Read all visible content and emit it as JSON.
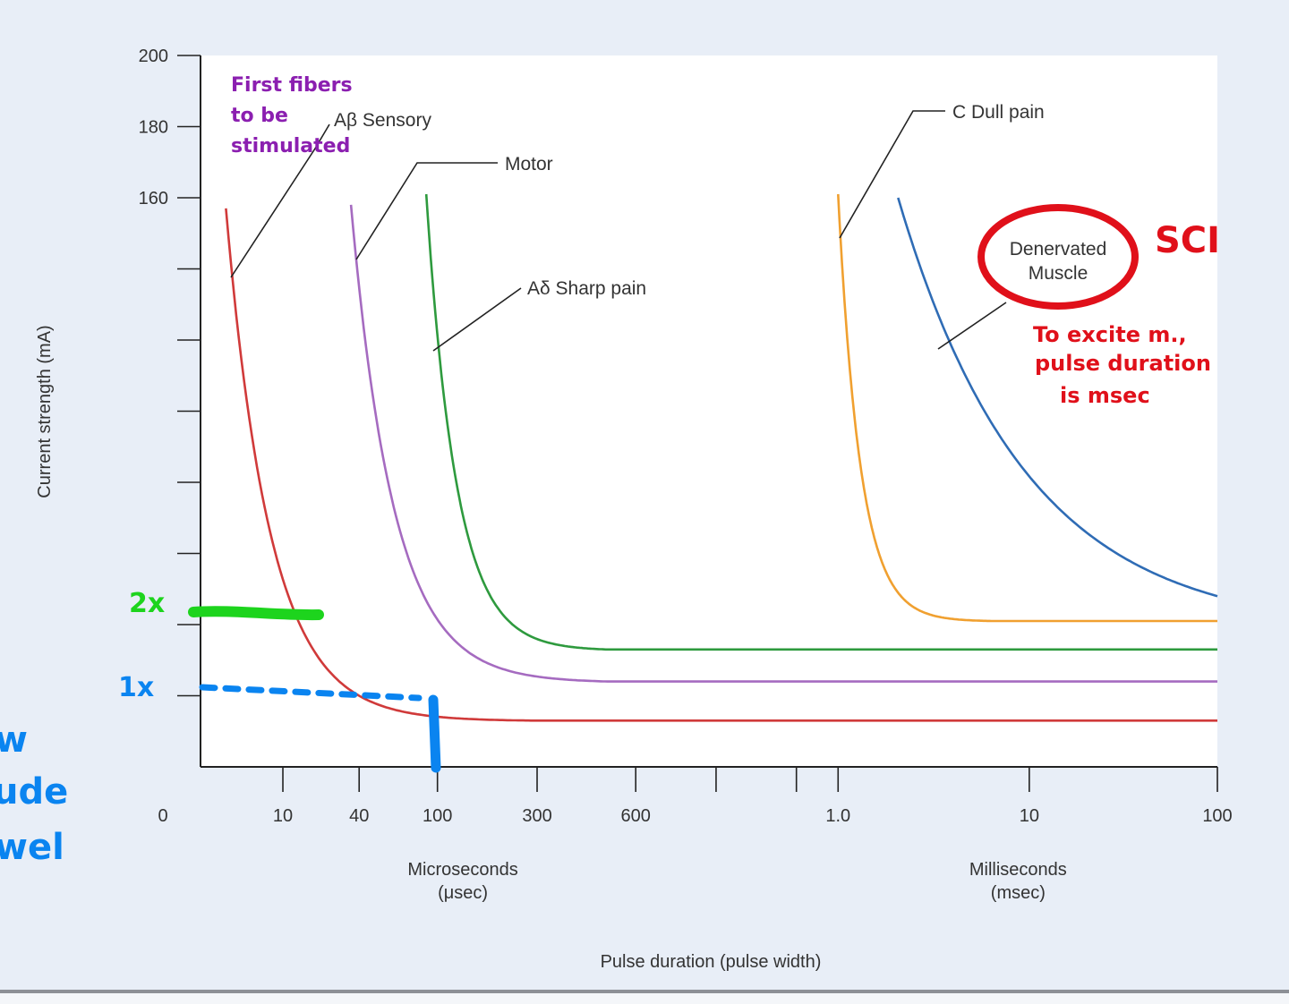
{
  "chart_data": {
    "type": "line",
    "title": "",
    "ylabel": "Current strength (mA)",
    "xlabel": "Pulse duration (pulse width)",
    "ylim": [
      0,
      200
    ],
    "y_ticks": [
      {
        "value": 200,
        "label": "200"
      },
      {
        "value": 180,
        "label": "180"
      },
      {
        "value": 160,
        "label": "160"
      },
      {
        "value": 140,
        "label": ""
      },
      {
        "value": 120,
        "label": ""
      },
      {
        "value": 100,
        "label": ""
      },
      {
        "value": 80,
        "label": ""
      },
      {
        "value": 60,
        "label": ""
      },
      {
        "value": 40,
        "label": ""
      },
      {
        "value": 20,
        "label": ""
      }
    ],
    "x_ticks": [
      {
        "pos": 0,
        "label": "0"
      },
      {
        "pos": 0.081,
        "label": "10"
      },
      {
        "pos": 0.156,
        "label": "40"
      },
      {
        "pos": 0.233,
        "label": "100"
      },
      {
        "pos": 0.331,
        "label": "300"
      },
      {
        "pos": 0.428,
        "label": "600"
      },
      {
        "pos": 0.507,
        "label": ""
      },
      {
        "pos": 0.586,
        "label": ""
      },
      {
        "pos": 0.627,
        "label": "1.0"
      },
      {
        "pos": 0.815,
        "label": "10"
      },
      {
        "pos": 1.0,
        "label": "100"
      }
    ],
    "x_groups": [
      {
        "line1": "Microseconds",
        "line2": "(μsec)",
        "pos": 0.258
      },
      {
        "line1": "Milliseconds",
        "line2": "(msec)",
        "pos": 0.804
      }
    ],
    "series": [
      {
        "name": "Aβ Sensory",
        "color": "#d03a3a",
        "x_start": 0.025,
        "x_flat": 0.33,
        "y_start": 157,
        "y_floor": 13,
        "k": 7
      },
      {
        "name": "Motor",
        "color": "#a56bc0",
        "x_start": 0.148,
        "x_flat": 0.4,
        "y_start": 158,
        "y_floor": 24,
        "k": 6
      },
      {
        "name": "Aδ Sharp pain",
        "color": "#2e9a3e",
        "x_start": 0.222,
        "x_flat": 0.4,
        "y_start": 161,
        "y_floor": 33,
        "k": 6
      },
      {
        "name": "C Dull pain",
        "color": "#f0a030",
        "x_start": 0.627,
        "x_flat": 0.78,
        "y_start": 161,
        "y_floor": 41,
        "k": 7
      },
      {
        "name": "Denervated Muscle",
        "color": "#2f6cb5",
        "x_start": 0.686,
        "x_flat": 1.0,
        "y_start": 160,
        "y_floor": 48,
        "k": 2.5
      }
    ]
  },
  "annotations": {
    "first_fibers": "First fibers to be stimulated",
    "sci": "SCI",
    "to_excite": [
      "To excite m.,",
      "pulse duration",
      "is msec"
    ],
    "mark_2x": "2x",
    "mark_1x": "1x",
    "left_edge": [
      "w",
      "ude",
      "wel"
    ]
  },
  "colors": {
    "purple_ink": "#8b1fb0",
    "red_ink": "#e0101a",
    "green_ink": "#1dd41d",
    "blue_ink": "#0a84f0"
  }
}
